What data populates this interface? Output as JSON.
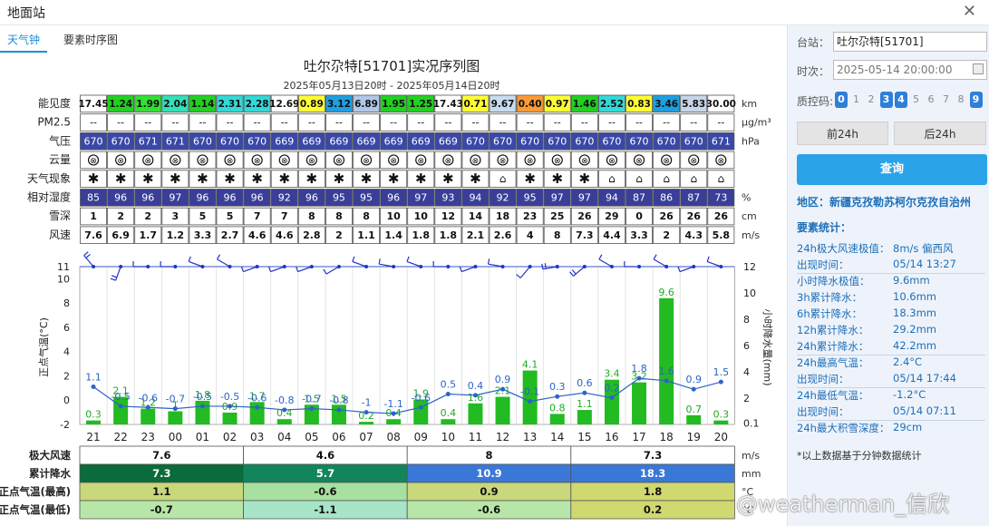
{
  "window": {
    "title": "地面站"
  },
  "tabs": [
    {
      "label": "天气钟"
    },
    {
      "label": "要素时序图"
    }
  ],
  "chart_title": "吐尔尕特[51701]实况序列图",
  "chart_subtitle": "2025年05月13日20时 - 2025年05月14日20时",
  "hours": [
    "21",
    "22",
    "23",
    "00",
    "01",
    "02",
    "03",
    "04",
    "05",
    "06",
    "07",
    "08",
    "09",
    "10",
    "11",
    "12",
    "13",
    "14",
    "15",
    "16",
    "17",
    "18",
    "19",
    "20"
  ],
  "table": {
    "visibility": {
      "label": "能见度",
      "unit": "km",
      "values": [
        "17.45",
        "1.24",
        "1.99",
        "2.04",
        "1.14",
        "2.31",
        "2.28",
        "12.69",
        "0.89",
        "3.12",
        "6.89",
        "1.95",
        "1.25",
        "17.43",
        "0.71",
        "9.67",
        "0.40",
        "0.97",
        "1.46",
        "2.52",
        "0.83",
        "3.46",
        "5.83",
        "30.00"
      ],
      "colors": [
        "#ffffff",
        "#22d022",
        "#33e033",
        "#33e0b8",
        "#22d022",
        "#33d8d8",
        "#33d8d8",
        "#ffffff",
        "#ffff33",
        "#1d9fe0",
        "#b0c8e8",
        "#22d022",
        "#22d022",
        "#ffffff",
        "#ffff33",
        "#c8dcf0",
        "#ff9933",
        "#ffff33",
        "#22d022",
        "#33d8d8",
        "#ffff33",
        "#1d9fe0",
        "#c8d4e8",
        "#ffffff"
      ]
    },
    "pm25": {
      "label": "PM2.5",
      "unit": "μg/m³",
      "values": [
        "--",
        "--",
        "--",
        "--",
        "--",
        "--",
        "--",
        "--",
        "--",
        "--",
        "--",
        "--",
        "--",
        "--",
        "--",
        "--",
        "--",
        "--",
        "--",
        "--",
        "--",
        "--",
        "--",
        "--"
      ]
    },
    "pressure": {
      "label": "气压",
      "unit": "hPa",
      "values": [
        "670",
        "670",
        "671",
        "671",
        "670",
        "670",
        "670",
        "669",
        "669",
        "669",
        "669",
        "669",
        "669",
        "669",
        "670",
        "670",
        "670",
        "670",
        "670",
        "670",
        "670",
        "670",
        "670",
        "671"
      ]
    },
    "cloud": {
      "label": "云量",
      "values": [
        "⊗",
        "⊗",
        "⊗",
        "⊗",
        "⊗",
        "⊗",
        "⊗",
        "⊗",
        "⊗",
        "⊗",
        "⊗",
        "⊗",
        "⊗",
        "⊗",
        "⊗",
        "⊗",
        "⊗",
        "⊗",
        "⊗",
        "⊗",
        "⊗",
        "⊗",
        "⊗",
        "⊗"
      ]
    },
    "weather": {
      "label": "天气现象",
      "values": [
        "✱",
        "✱",
        "✱",
        "✱",
        "✱",
        "✱",
        "✱",
        "✱",
        "✱",
        "✱",
        "✱",
        "✱",
        "✱",
        "✱",
        "✱",
        "⌂",
        "✱",
        "✱",
        "✱",
        "⌂",
        "⌂",
        "⌂",
        "⌂",
        "⌂"
      ]
    },
    "humidity": {
      "label": "相对湿度",
      "unit": "%",
      "values": [
        "85",
        "96",
        "96",
        "97",
        "96",
        "96",
        "96",
        "92",
        "96",
        "95",
        "95",
        "96",
        "97",
        "93",
        "94",
        "92",
        "95",
        "97",
        "97",
        "94",
        "87",
        "86",
        "87",
        "73"
      ]
    },
    "snow": {
      "label": "雪深",
      "unit": "cm",
      "values": [
        "1",
        "2",
        "2",
        "3",
        "5",
        "5",
        "7",
        "7",
        "8",
        "8",
        "8",
        "10",
        "10",
        "12",
        "14",
        "18",
        "23",
        "25",
        "26",
        "29",
        "0",
        "26",
        "26",
        "26"
      ]
    },
    "wind": {
      "label": "风速",
      "unit": "m/s",
      "values": [
        "7.6",
        "6.9",
        "1.7",
        "1.2",
        "3.3",
        "2.7",
        "4.6",
        "4.6",
        "2.8",
        "2",
        "1.1",
        "1.4",
        "1.8",
        "1.8",
        "2.1",
        "2.6",
        "4",
        "8",
        "7.3",
        "4.4",
        "3.3",
        "2",
        "4.3",
        "5.8"
      ]
    }
  },
  "chart_data": {
    "type": "bar+line",
    "x": [
      "21",
      "22",
      "23",
      "00",
      "01",
      "02",
      "03",
      "04",
      "05",
      "06",
      "07",
      "08",
      "09",
      "10",
      "11",
      "12",
      "13",
      "14",
      "15",
      "16",
      "17",
      "18",
      "19",
      "20"
    ],
    "ylabel_left": "正点气温(°C)",
    "ylabel_right": "小时降水量(mm)",
    "ylim_left": [
      -2,
      11
    ],
    "ylim_right": [
      0,
      12
    ],
    "left_ticks": [
      "11",
      "10",
      "8",
      "6",
      "4",
      "2",
      "0",
      "-2"
    ],
    "right_ticks": [
      "12",
      "10",
      "8",
      "6",
      "4",
      "2",
      "0.1"
    ],
    "series": [
      {
        "name": "正点气温",
        "type": "line",
        "color": "#2c63c8",
        "values": [
          1.1,
          -0.5,
          -0.6,
          -0.7,
          -0.5,
          -0.5,
          -0.6,
          -0.8,
          -0.7,
          -0.8,
          -1,
          -1.1,
          -0.6,
          0.5,
          0.4,
          0.9,
          -0.1,
          0.3,
          0.6,
          0.2,
          1.8,
          1.6,
          0.9,
          1.5
        ],
        "labels": [
          "1.1",
          "-0.5",
          "-0.6",
          "-0.7",
          "-0.5",
          "-0.5",
          "-0.6",
          "-0.8",
          "-0.7",
          "-0.8",
          "-1",
          "-1.1",
          "-0.6",
          "0.5",
          "0.4",
          "0.9",
          "-0.1",
          "0.3",
          "0.6",
          "0.2",
          "1.8",
          "1.6",
          "0.9",
          "1.5"
        ]
      },
      {
        "name": "小时降水量",
        "type": "bar",
        "color": "#22bb22",
        "values": [
          0.3,
          2.1,
          1.2,
          1,
          1.8,
          0.9,
          1.7,
          0.4,
          1.5,
          1.5,
          0.2,
          0.4,
          1.9,
          0.4,
          1.6,
          2.1,
          4.1,
          0.8,
          1.1,
          3.4,
          3.2,
          9.6,
          0.7,
          0.3
        ],
        "labels": [
          "0.3",
          "2.1",
          "1.2",
          "1",
          "1.8",
          "0.9",
          "1.7",
          "0.4",
          "1.5",
          "1.5",
          "0.2",
          "0.4",
          "1.9",
          "0.4",
          "1.6",
          "2.1",
          "4.1",
          "0.8",
          "1.1",
          "3.4",
          "3.2",
          "9.6",
          "0.7",
          "0.3"
        ]
      }
    ],
    "wind_dirs_deg": [
      320,
      200,
      270,
      270,
      290,
      300,
      250,
      250,
      250,
      240,
      290,
      280,
      290,
      270,
      250,
      280,
      220,
      260,
      230,
      300,
      270,
      300,
      250,
      290
    ],
    "wind_speeds": [
      7.6,
      6.9,
      1.7,
      1.2,
      3.3,
      2.7,
      4.6,
      4.6,
      2.8,
      2,
      1.1,
      1.4,
      1.8,
      1.8,
      2.1,
      2.6,
      4,
      8,
      7.3,
      4.4,
      3.3,
      2,
      4.3,
      5.8
    ],
    "grid": true
  },
  "summary": {
    "max_wind": {
      "label": "极大风速",
      "unit": "m/s",
      "values": [
        "7.6",
        "4.6",
        "8",
        "7.3"
      ]
    },
    "precip": {
      "label": "累计降水",
      "unit": "mm",
      "values": [
        "7.3",
        "5.7",
        "10.9",
        "18.3"
      ],
      "colors": [
        "#0b6b3a",
        "#12855a",
        "#3a78d8",
        "#3a78d8"
      ]
    },
    "tmax": {
      "label": "正点气温(最高)",
      "unit": "°C",
      "values": [
        "1.1",
        "-0.6",
        "0.9",
        "1.8"
      ],
      "colors": [
        "#c8d87a",
        "#a8e0a0",
        "#c8d87a",
        "#d0d870"
      ]
    },
    "tmin": {
      "label": "正点气温(最低)",
      "unit": "°C",
      "values": [
        "-0.7",
        "-1.1",
        "-0.6",
        "0.2"
      ],
      "colors": [
        "#b8e6a8",
        "#a8e4c8",
        "#b8e6a8",
        "#d0d870"
      ]
    }
  },
  "side": {
    "station_label": "台站：",
    "station_value": "吐尔尕特[51701]",
    "time_label": "时次：",
    "time_value": "2025-05-14 20:00:00",
    "qc_label": "质控码:",
    "qc_codes": [
      "0",
      "1",
      "2",
      "3",
      "4",
      "5",
      "6",
      "7",
      "8",
      "9"
    ],
    "qc_on": [
      true,
      false,
      false,
      true,
      true,
      false,
      false,
      false,
      false,
      true
    ],
    "prev_label": "前24h",
    "next_label": "后24h",
    "query_label": "查询",
    "region": "地区：新疆克孜勒苏柯尔克孜自治州",
    "stats_title": "要素统计：",
    "stats": [
      {
        "k": "24h极大风速极值：",
        "v": "8m/s 偏西风"
      },
      {
        "k": "出现时间：",
        "v": "05/14 13:27"
      },
      {
        "k": "小时降水极值：",
        "v": "9.6mm"
      },
      {
        "k": "3h累计降水：",
        "v": "10.6mm"
      },
      {
        "k": "6h累计降水：",
        "v": "18.3mm"
      },
      {
        "k": "12h累计降水：",
        "v": "29.2mm"
      },
      {
        "k": "24h累计降水：",
        "v": "42.2mm"
      },
      {
        "k": "24h最高气温：",
        "v": "2.4°C"
      },
      {
        "k": "出现时间：",
        "v": "05/14 17:44"
      },
      {
        "k": "24h最低气温：",
        "v": "-1.2°C"
      },
      {
        "k": "出现时间：",
        "v": "05/14 07:11"
      },
      {
        "k": "24h最大积雪深度：",
        "v": "29cm"
      }
    ],
    "note": "*以上数据基于分钟数据统计"
  },
  "watermark": "@weatherman_信欣"
}
